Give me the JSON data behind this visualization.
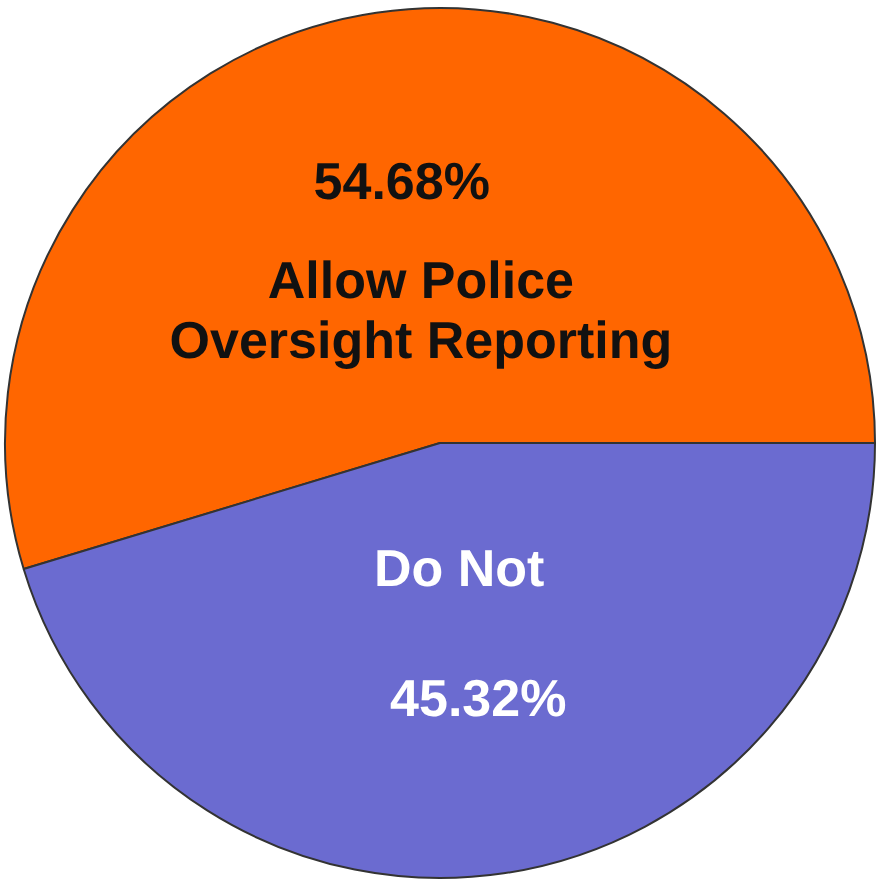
{
  "chart_data": {
    "type": "pie",
    "categories": [
      "Allow Police Oversight Reporting",
      "Do Not"
    ],
    "values": [
      54.68,
      45.32
    ],
    "colors": [
      "#ff6600",
      "#6b6bd0"
    ],
    "value_labels": [
      "54.68%",
      "45.32%"
    ],
    "legend": false
  }
}
